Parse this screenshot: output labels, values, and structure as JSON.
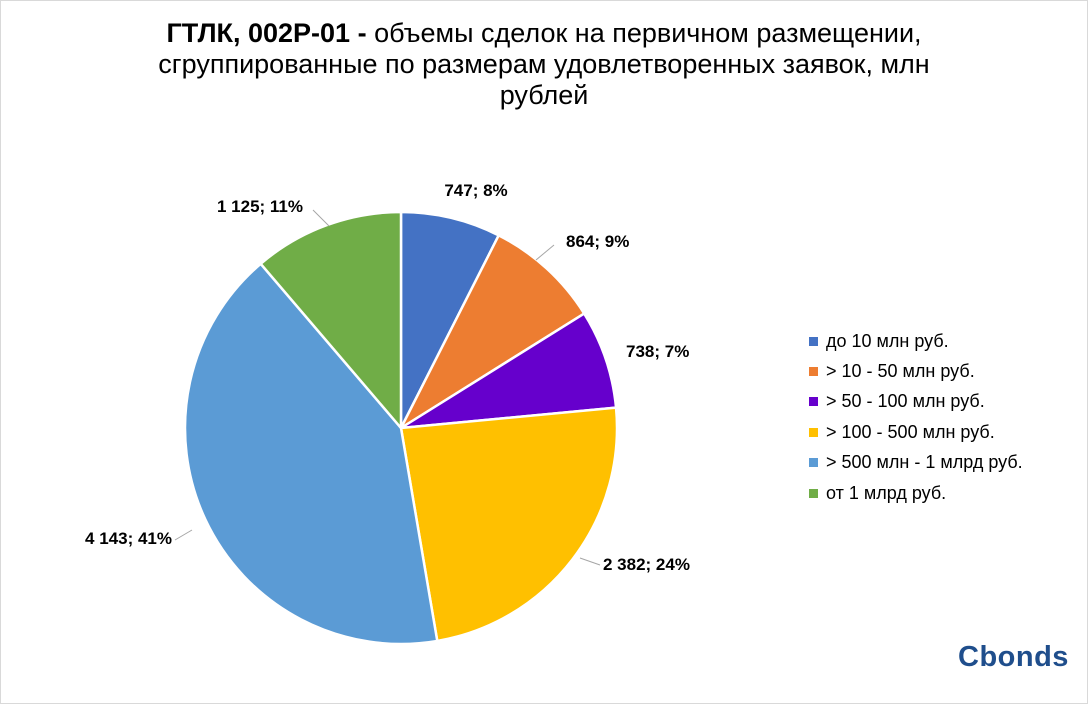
{
  "title": {
    "bold": "ГТЛК, 002Р-01 - ",
    "line1_rest": "объемы сделок на первичном размещении,",
    "line2": "сгруппированные по размерам удовлетворенных заявок, млн",
    "line3": "рублей"
  },
  "chart_data": {
    "type": "pie",
    "title": "ГТЛК, 002Р-01 - объемы сделок на первичном размещении, сгруппированные по размерам удовлетворенных заявок, млн рублей",
    "legend_position": "right",
    "slices": [
      {
        "name": "до 10 млн руб.",
        "value": 747,
        "percent": 8,
        "label": "747; 8%",
        "color": "#4472c4"
      },
      {
        "name": "> 10 - 50 млн руб.",
        "value": 864,
        "percent": 9,
        "label": "864; 9%",
        "color": "#ed7d31"
      },
      {
        "name": "> 50 - 100 млн руб.",
        "value": 738,
        "percent": 7,
        "label": "738; 7%",
        "color": "#6600cc"
      },
      {
        "name": "> 100 - 500 млн руб.",
        "value": 2382,
        "percent": 24,
        "label": "2 382; 24%",
        "color": "#ffc000"
      },
      {
        "name": "> 500 млн - 1 млрд руб.",
        "value": 4143,
        "percent": 41,
        "label": "4 143; 41%",
        "color": "#5b9bd5"
      },
      {
        "name": "от 1 млрд руб.",
        "value": 1125,
        "percent": 11,
        "label": "1 125; 11%",
        "color": "#70ad47"
      }
    ]
  },
  "logo": {
    "text": "Cbonds"
  }
}
